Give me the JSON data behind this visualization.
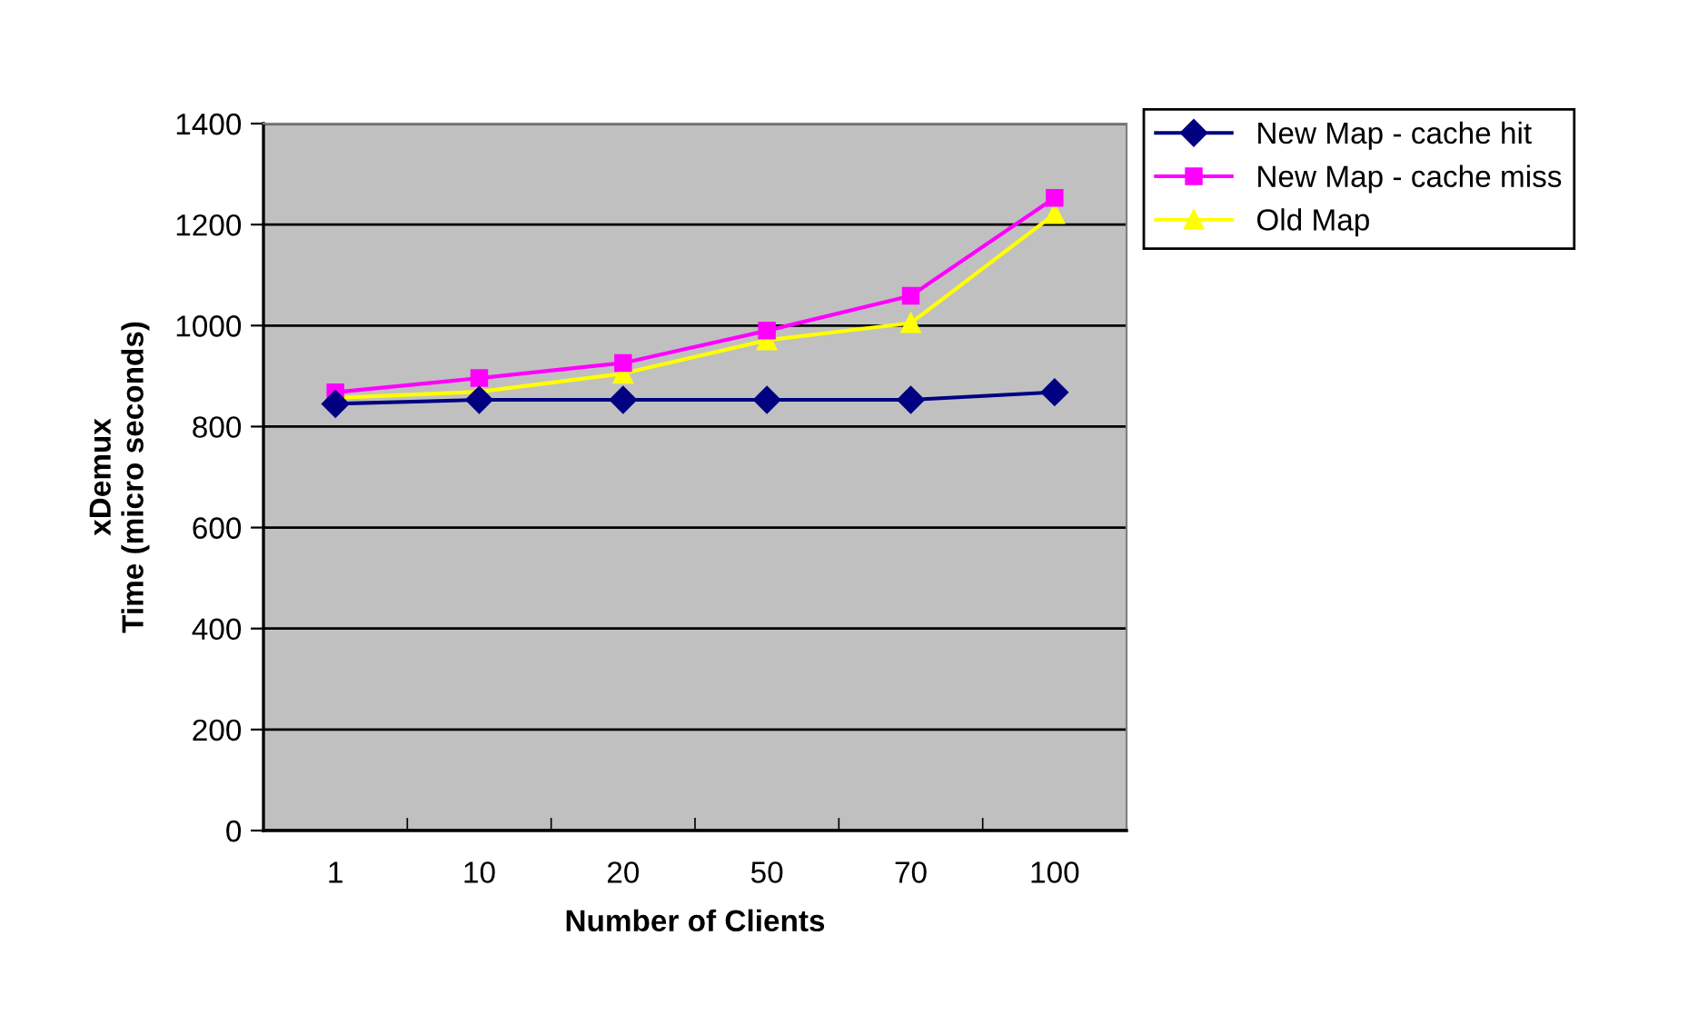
{
  "chart_data": {
    "type": "line",
    "xlabel": "Number of Clients",
    "ylabel": "xDemux\nTime (micro seconds)",
    "categories": [
      "1",
      "10",
      "20",
      "50",
      "70",
      "100"
    ],
    "series": [
      {
        "name": "New Map - cache hit",
        "color": "#000080",
        "marker": "diamond",
        "values": [
          845,
          853,
          853,
          853,
          853,
          868
        ]
      },
      {
        "name": "New Map - cache miss",
        "color": "#ff00ff",
        "marker": "square",
        "values": [
          868,
          896,
          926,
          990,
          1059,
          1253
        ]
      },
      {
        "name": "Old Map",
        "color": "#ffff00",
        "marker": "triangle",
        "values": [
          857,
          869,
          905,
          971,
          1005,
          1221
        ]
      }
    ],
    "ylim": [
      0,
      1400
    ],
    "yticks": [
      0,
      200,
      400,
      600,
      800,
      1000,
      1200,
      1400
    ],
    "grid": "y",
    "legend": "top right",
    "line_style": "solid"
  }
}
